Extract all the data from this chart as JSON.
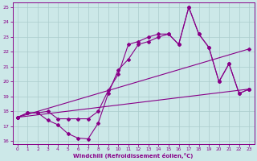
{
  "xlabel": "Windchill (Refroidissement éolien,°C)",
  "xlim": [
    -0.5,
    23.5
  ],
  "ylim": [
    15.8,
    25.3
  ],
  "yticks": [
    16,
    17,
    18,
    19,
    20,
    21,
    22,
    23,
    24,
    25
  ],
  "xticks": [
    0,
    1,
    2,
    3,
    4,
    5,
    6,
    7,
    8,
    9,
    10,
    11,
    12,
    13,
    14,
    15,
    16,
    17,
    18,
    19,
    20,
    21,
    22,
    23
  ],
  "bg_color": "#cce8e8",
  "line_color": "#880088",
  "grid_color": "#aacccc",
  "lines": [
    {
      "x": [
        0,
        1,
        2,
        3,
        4,
        5,
        6,
        7,
        8,
        9,
        10,
        11,
        12,
        13,
        14,
        15,
        16,
        17,
        18,
        19,
        20,
        21,
        22,
        23
      ],
      "y": [
        17.6,
        17.9,
        17.9,
        18.0,
        17.5,
        17.5,
        17.5,
        17.5,
        18.0,
        19.4,
        20.5,
        22.5,
        22.7,
        23.0,
        23.2,
        23.2,
        22.5,
        25.0,
        23.2,
        22.3,
        20.0,
        21.2,
        19.2,
        19.5
      ],
      "marker": "D",
      "markersize": 2.0
    },
    {
      "x": [
        0,
        1,
        2,
        3,
        4,
        5,
        6,
        7,
        8,
        9,
        10,
        11,
        12,
        13,
        14,
        15,
        16,
        17,
        18,
        19,
        20,
        21,
        22,
        23
      ],
      "y": [
        17.6,
        17.9,
        17.9,
        17.4,
        17.1,
        16.5,
        16.2,
        16.15,
        17.2,
        19.2,
        20.8,
        21.5,
        22.5,
        22.7,
        23.0,
        23.2,
        22.5,
        25.0,
        23.2,
        22.3,
        20.0,
        21.2,
        19.2,
        19.5
      ],
      "marker": "D",
      "markersize": 2.0
    },
    {
      "x": [
        0,
        23
      ],
      "y": [
        17.6,
        22.2
      ],
      "marker": "D",
      "markersize": 2.0
    },
    {
      "x": [
        0,
        23
      ],
      "y": [
        17.6,
        19.5
      ],
      "marker": "D",
      "markersize": 2.0
    }
  ]
}
